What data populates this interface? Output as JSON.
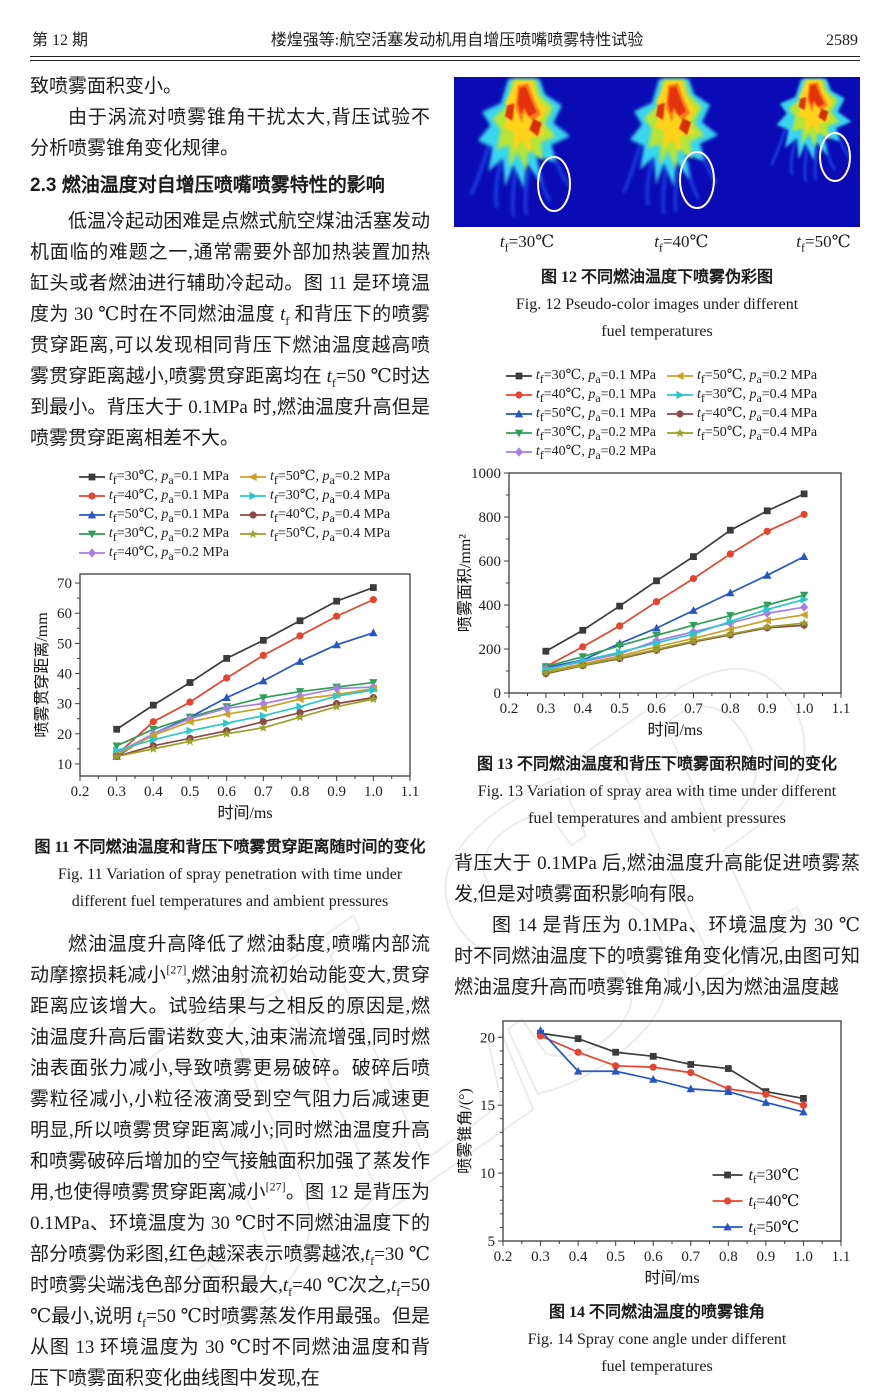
{
  "page": {
    "header": {
      "issue": "第 12 期",
      "title": "楼煌强等:航空活塞发动机用自增压喷嘴喷雾特性试验",
      "page_no": "2589"
    },
    "watermark": "JLSP"
  },
  "left": {
    "p1": "致喷雾面积变小。",
    "p2": "由于涡流对喷雾锥角干扰太大,背压试验不分析喷雾锥角变化规律。",
    "sec_heading": "2.3  燃油温度对自增压喷嘴喷雾特性的影响",
    "p3": "低温冷起动困难是点燃式航空煤油活塞发动机面临的难题之一,通常需要外部加热装置加热缸头或者燃油进行辅助冷起动。图 11 是环境温度为 30 ℃时在不同燃油温度 t_f 和背压下的喷雾贯穿距离,可以发现相同背压下燃油温度越高喷雾贯穿距离越小,喷雾贯穿距离均在 t_f=50 ℃时达到最小。背压大于 0.1MPa 时,燃油温度升高但是喷雾贯穿距离相差不大。",
    "p4": "燃油温度升高降低了燃油黏度,喷嘴内部流动摩擦损耗减小[27],燃油射流初始动能变大,贯穿距离应该增大。试验结果与之相反的原因是,燃油温度升高后雷诺数变大,油束湍流增强,同时燃油表面张力减小,导致喷雾更易破碎。破碎后喷雾粒径减小,小粒径液滴受到空气阻力后减速更明显,所以喷雾贯穿距离减小;同时燃油温度升高和喷雾破碎后增加的空气接触面积加强了蒸发作用,也使得喷雾贯穿距离减小[27]。图 12 是背压为 0.1MPa、环境温度为 30 ℃时不同燃油温度下的部分喷雾伪彩图,红色越深表示喷雾越浓,t_f=30 ℃时喷雾尖端浅色部分面积最大,t_f=40 ℃次之,t_f=50 ℃最小,说明 t_f=50 ℃时喷雾蒸发作用最强。但是从图 13 环境温度为 30 ℃时不同燃油温度和背压下喷雾面积变化曲线图中发现,在"
  },
  "right": {
    "p1": "背压大于 0.1MPa 后,燃油温度升高能促进喷雾蒸发,但是对喷雾面积影响有限。",
    "p2": "图 14 是背压为 0.1MPa、环境温度为 30 ℃时不同燃油温度下的喷雾锥角变化情况,由图可知燃油温度升高而喷雾锥角减小,因为燃油温度越"
  },
  "figures": {
    "fig11": {
      "caption_cn": "图 11  不同燃油温度和背压下喷雾贯穿距离随时间的变化",
      "caption_en": "Fig. 11  Variation of spray penetration with time under different fuel temperatures and ambient pressures"
    },
    "fig12": {
      "labels": [
        "t_f=30℃",
        "t_f=40℃",
        "t_f=50℃"
      ],
      "caption_cn": "图 12  不同燃油温度下喷雾伪彩图",
      "caption_en": "Fig. 12  Pseudo-color images under different fuel temperatures"
    },
    "fig13": {
      "caption_cn": "图 13  不同燃油温度和背压下喷雾面积随时间的变化",
      "caption_en": "Fig. 13  Variation of spray area with time under different fuel temperatures and ambient pressures"
    },
    "fig14": {
      "caption_cn": "图 14  不同燃油温度的喷雾锥角",
      "caption_en": "Fig. 14  Spray cone angle under different fuel temperatures"
    }
  },
  "chart_data": [
    {
      "id": "fig11",
      "type": "line",
      "x": [
        0.3,
        0.4,
        0.5,
        0.6,
        0.7,
        0.8,
        0.9,
        1.0
      ],
      "xlabel": "时间/ms",
      "ylabel": "喷雾贯穿距离/mm",
      "xlim": [
        0.2,
        1.1
      ],
      "ylim": [
        6,
        73
      ],
      "xticks": [
        0.2,
        0.3,
        0.4,
        0.5,
        0.6,
        0.7,
        0.8,
        0.9,
        1.0,
        1.1
      ],
      "yticks": [
        10,
        20,
        30,
        40,
        50,
        60,
        70
      ],
      "y_minor": 1,
      "legend_position": "top",
      "legend_order": [
        0,
        5,
        1,
        6,
        2,
        7,
        3,
        8,
        4
      ],
      "series": [
        {
          "name": "t_f=30℃, p_a=0.1 MPa",
          "color": "#3b3b3b",
          "marker": "square",
          "values": [
            21.5,
            29.5,
            37,
            45,
            51,
            57.5,
            64,
            68.5
          ]
        },
        {
          "name": "t_f=40℃, p_a=0.1 MPa",
          "color": "#e8432e",
          "marker": "circle",
          "values": [
            13,
            24,
            30.5,
            38.5,
            46,
            52.5,
            59,
            64.5
          ]
        },
        {
          "name": "t_f=50℃, p_a=0.1 MPa",
          "color": "#2457c5",
          "marker": "tri-up",
          "values": [
            12.5,
            20,
            25.5,
            32,
            37.5,
            44,
            49.5,
            53.5
          ]
        },
        {
          "name": "t_f=30℃, p_a=0.2 MPa",
          "color": "#2f9e57",
          "marker": "tri-down",
          "values": [
            16,
            21.5,
            25.5,
            29,
            32,
            34,
            35.5,
            37
          ]
        },
        {
          "name": "t_f=40℃, p_a=0.2 MPa",
          "color": "#a77de8",
          "marker": "diamond",
          "values": [
            13.5,
            20,
            25,
            28.5,
            30,
            32.5,
            35,
            35.5
          ]
        },
        {
          "name": "t_f=50℃, p_a=0.2 MPa",
          "color": "#c9a227",
          "marker": "tri-left",
          "values": [
            13,
            19.5,
            24,
            26.5,
            28.5,
            31.5,
            33,
            35
          ]
        },
        {
          "name": "t_f=30℃, p_a=0.4 MPa",
          "color": "#2cc7cd",
          "marker": "tri-right",
          "values": [
            14.5,
            18,
            21,
            23.5,
            26,
            29,
            32.5,
            34.5
          ]
        },
        {
          "name": "t_f=40℃, p_a=0.4 MPa",
          "color": "#8e4a44",
          "marker": "circle",
          "values": [
            12.5,
            16,
            18.5,
            21,
            24,
            27,
            30,
            32
          ]
        },
        {
          "name": "t_f=50℃, p_a=0.4 MPa",
          "color": "#9aa02a",
          "marker": "star",
          "values": [
            12.5,
            15,
            17.5,
            20,
            22,
            25.5,
            29,
            31.5
          ]
        }
      ]
    },
    {
      "id": "fig13",
      "type": "line",
      "x": [
        0.3,
        0.4,
        0.5,
        0.6,
        0.7,
        0.8,
        0.9,
        1.0
      ],
      "xlabel": "时间/ms",
      "ylabel": "喷雾面积/mm²",
      "xlim": [
        0.2,
        1.1
      ],
      "ylim": [
        0,
        1000
      ],
      "xticks": [
        0.2,
        0.3,
        0.4,
        0.5,
        0.6,
        0.7,
        0.8,
        0.9,
        1.0,
        1.1
      ],
      "yticks": [
        0,
        200,
        400,
        600,
        800,
        1000
      ],
      "y_minor": 1,
      "legend_position": "top",
      "legend_order": [
        0,
        5,
        1,
        6,
        2,
        7,
        3,
        8,
        4
      ],
      "series": [
        {
          "name": "t_f=30℃, p_a=0.1 MPa",
          "color": "#3b3b3b",
          "marker": "square",
          "values": [
            190,
            285,
            395,
            510,
            620,
            740,
            828,
            905
          ]
        },
        {
          "name": "t_f=40℃, p_a=0.1 MPa",
          "color": "#e8432e",
          "marker": "circle",
          "values": [
            120,
            210,
            305,
            415,
            520,
            632,
            735,
            812
          ]
        },
        {
          "name": "t_f=50℃, p_a=0.1 MPa",
          "color": "#2457c5",
          "marker": "tri-up",
          "values": [
            115,
            150,
            225,
            295,
            375,
            455,
            535,
            620
          ]
        },
        {
          "name": "t_f=30℃, p_a=0.2 MPa",
          "color": "#2f9e57",
          "marker": "tri-down",
          "values": [
            120,
            165,
            215,
            262,
            308,
            352,
            400,
            445
          ]
        },
        {
          "name": "t_f=40℃, p_a=0.2 MPa",
          "color": "#a77de8",
          "marker": "diamond",
          "values": [
            110,
            142,
            178,
            238,
            278,
            318,
            362,
            390
          ]
        },
        {
          "name": "t_f=50℃, p_a=0.2 MPa",
          "color": "#c9a227",
          "marker": "tri-left",
          "values": [
            100,
            132,
            168,
            210,
            248,
            290,
            330,
            355
          ]
        },
        {
          "name": "t_f=30℃, p_a=0.4 MPa",
          "color": "#2cc7cd",
          "marker": "tri-right",
          "values": [
            105,
            148,
            185,
            228,
            268,
            325,
            380,
            425
          ]
        },
        {
          "name": "t_f=40℃, p_a=0.4 MPa",
          "color": "#8e4a44",
          "marker": "circle",
          "values": [
            88,
            124,
            156,
            194,
            232,
            264,
            296,
            308
          ]
        },
        {
          "name": "t_f=50℃, p_a=0.4 MPa",
          "color": "#9aa02a",
          "marker": "star",
          "values": [
            92,
            126,
            160,
            198,
            236,
            268,
            300,
            318
          ]
        }
      ]
    },
    {
      "id": "fig14",
      "type": "line",
      "x": [
        0.3,
        0.4,
        0.5,
        0.6,
        0.7,
        0.8,
        0.9,
        1.0
      ],
      "xlabel": "时间/ms",
      "ylabel": "喷雾锥角/(°)",
      "xlim": [
        0.2,
        1.1
      ],
      "ylim": [
        5,
        21.2
      ],
      "xticks": [
        0.2,
        0.3,
        0.4,
        0.5,
        0.6,
        0.7,
        0.8,
        0.9,
        1.0,
        1.1
      ],
      "yticks": [
        5,
        10,
        15,
        20
      ],
      "y_minor": 4,
      "legend_position": "inside-bottom-right",
      "legend_order": [
        0,
        1,
        2
      ],
      "series": [
        {
          "name": "t_f=30℃",
          "color": "#3b3b3b",
          "marker": "square",
          "values": [
            20.3,
            19.9,
            18.9,
            18.6,
            18.0,
            17.7,
            16.0,
            15.5
          ]
        },
        {
          "name": "t_f=40℃",
          "color": "#e8432e",
          "marker": "circle",
          "values": [
            20.1,
            18.9,
            17.9,
            17.8,
            17.4,
            16.2,
            15.8,
            15.0
          ]
        },
        {
          "name": "t_f=50℃",
          "color": "#2457c5",
          "marker": "tri-up",
          "values": [
            20.5,
            17.5,
            17.5,
            16.9,
            16.2,
            16.0,
            15.2,
            14.5
          ]
        }
      ]
    }
  ]
}
